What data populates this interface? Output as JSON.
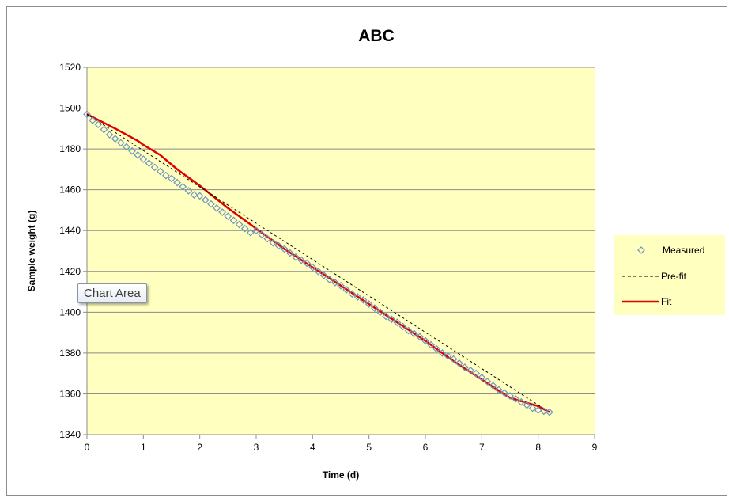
{
  "chart_data": {
    "type": "scatter",
    "title": "ABC",
    "xlabel": "Time (d)",
    "ylabel": "Sample weight (g)",
    "xlim": [
      0,
      9
    ],
    "ylim": [
      1340,
      1520
    ],
    "xticks": [
      0,
      1,
      2,
      3,
      4,
      5,
      6,
      7,
      8,
      9
    ],
    "yticks": [
      1340,
      1360,
      1380,
      1400,
      1420,
      1440,
      1460,
      1480,
      1500,
      1520
    ],
    "grid": "horizontal",
    "plot_background": "#ffffc0",
    "legend_position": "right",
    "series": [
      {
        "name": "Measured",
        "style": "diamond-markers",
        "color": "#6f95c2",
        "x": [
          0.0,
          0.1,
          0.2,
          0.3,
          0.4,
          0.5,
          0.6,
          0.7,
          0.8,
          0.9,
          1.0,
          1.1,
          1.2,
          1.3,
          1.4,
          1.5,
          1.6,
          1.7,
          1.8,
          1.9,
          2.0,
          2.1,
          2.2,
          2.3,
          2.4,
          2.5,
          2.6,
          2.7,
          2.8,
          2.9,
          3.0,
          3.1,
          3.2,
          3.3,
          3.4,
          3.5,
          3.6,
          3.7,
          3.8,
          3.9,
          4.0,
          4.1,
          4.2,
          4.3,
          4.4,
          4.5,
          4.6,
          4.7,
          4.8,
          4.9,
          5.0,
          5.1,
          5.2,
          5.3,
          5.4,
          5.5,
          5.6,
          5.7,
          5.8,
          5.9,
          6.0,
          6.1,
          6.2,
          6.3,
          6.4,
          6.5,
          6.6,
          6.7,
          6.8,
          6.9,
          7.0,
          7.1,
          7.2,
          7.3,
          7.4,
          7.5,
          7.6,
          7.7,
          7.8,
          7.9,
          8.0,
          8.1,
          8.2
        ],
        "y": [
          1497.0,
          1494.0,
          1492.0,
          1489.5,
          1487.0,
          1485.0,
          1483.0,
          1481.0,
          1479.0,
          1477.0,
          1475.0,
          1473.0,
          1471.0,
          1469.0,
          1467.0,
          1465.5,
          1463.5,
          1461.5,
          1459.5,
          1457.5,
          1457.0,
          1455.0,
          1453.0,
          1451.0,
          1449.0,
          1447.0,
          1445.0,
          1443.0,
          1441.0,
          1439.0,
          1440.0,
          1438.0,
          1436.0,
          1434.0,
          1432.5,
          1431.0,
          1429.0,
          1427.0,
          1425.5,
          1424.0,
          1422.0,
          1420.0,
          1418.0,
          1416.0,
          1414.5,
          1413.0,
          1411.0,
          1409.0,
          1407.5,
          1406.0,
          1404.0,
          1402.0,
          1400.0,
          1398.0,
          1396.5,
          1395.0,
          1393.0,
          1391.0,
          1389.5,
          1388.0,
          1386.0,
          1384.0,
          1382.0,
          1380.0,
          1378.5,
          1377.0,
          1375.0,
          1373.0,
          1371.5,
          1370.0,
          1368.0,
          1366.0,
          1364.0,
          1362.0,
          1360.5,
          1359.0,
          1357.5,
          1356.0,
          1354.5,
          1353.0,
          1352.0,
          1351.5,
          1351.0
        ]
      },
      {
        "name": "Pre-fit",
        "style": "dashed-line",
        "color": "#000000",
        "x": [
          0,
          8.2
        ],
        "y": [
          1497,
          1351
        ]
      },
      {
        "name": "Fit",
        "style": "solid-line",
        "color": "#e00000",
        "x": [
          0.0,
          0.5,
          0.9,
          1.0,
          1.3,
          1.6,
          2.0,
          2.5,
          3.0,
          3.5,
          4.0,
          4.5,
          5.0,
          5.5,
          6.0,
          6.5,
          7.0,
          7.5,
          8.0,
          8.2
        ],
        "y": [
          1497,
          1490,
          1484,
          1482,
          1477,
          1470,
          1462,
          1451,
          1441,
          1431,
          1422,
          1413,
          1404,
          1395,
          1386,
          1376,
          1367,
          1358,
          1354,
          1351
        ]
      }
    ]
  },
  "tooltip": {
    "text": "Chart Area"
  }
}
